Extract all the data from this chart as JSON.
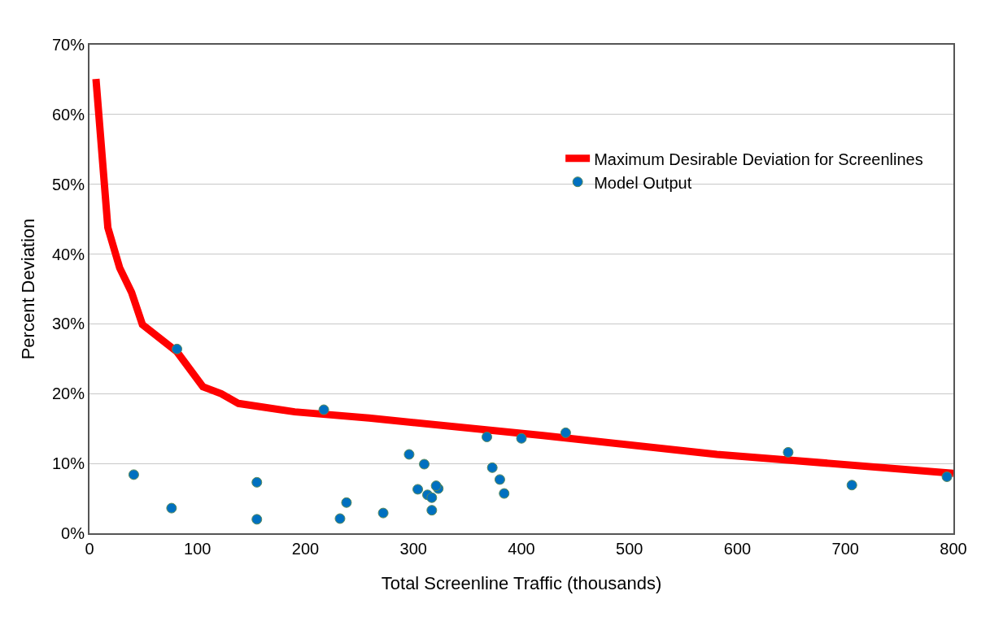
{
  "chart_data": {
    "type": "scatter",
    "xlabel": "Total Screenline Traffic (thousands)",
    "ylabel": "Percent Deviation",
    "xlim": [
      0,
      800
    ],
    "xticks": [
      0,
      100,
      200,
      300,
      400,
      500,
      600,
      700,
      800
    ],
    "ylim": [
      0,
      70
    ],
    "yticks": [
      {
        "value": 0,
        "label": "0%"
      },
      {
        "value": 10,
        "label": "10%"
      },
      {
        "value": 20,
        "label": "20%"
      },
      {
        "value": 30,
        "label": "30%"
      },
      {
        "value": 40,
        "label": "40%"
      },
      {
        "value": 50,
        "label": "50%"
      },
      {
        "value": 60,
        "label": "60%"
      },
      {
        "value": 70,
        "label": "70%"
      }
    ],
    "grid": "y",
    "legend": "top right",
    "series": [
      {
        "name": "Maximum Desirable Deviation for Screenlines",
        "type": "line",
        "color": "#ff0000",
        "marker": "none",
        "line_style": "solid",
        "x": [
          6,
          17,
          28,
          39,
          49,
          81,
          105,
          122,
          138,
          190,
          259,
          420,
          581,
          800
        ],
        "values": [
          65.1,
          43.8,
          38,
          34.5,
          29.9,
          26,
          21,
          20,
          18.6,
          17.4,
          16.5,
          14,
          11.3,
          8.6
        ]
      },
      {
        "name": "Model Output",
        "color": "#0070c0",
        "marker": "circle",
        "x": [
          41,
          76,
          81,
          155,
          155,
          217,
          232,
          238,
          272,
          296,
          310,
          304,
          313,
          317,
          317,
          323,
          321,
          368,
          373,
          380,
          384,
          400,
          441,
          647,
          706,
          794
        ],
        "values": [
          8.4,
          3.6,
          26.4,
          7.3,
          2.0,
          17.7,
          2.1,
          4.4,
          2.9,
          11.3,
          9.9,
          6.3,
          5.5,
          5.1,
          3.3,
          6.4,
          6.8,
          13.8,
          9.4,
          7.7,
          5.7,
          13.6,
          14.4,
          11.6,
          6.9,
          8.1
        ]
      }
    ]
  }
}
